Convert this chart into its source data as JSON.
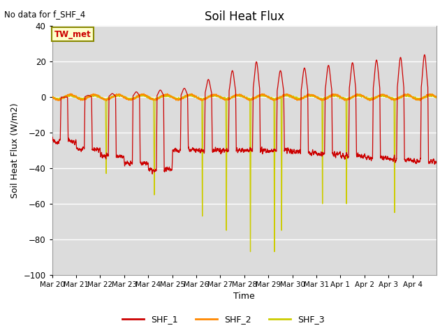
{
  "title": "Soil Heat Flux",
  "xlabel": "Time",
  "ylabel": "Soil Heat Flux (W/m2)",
  "annotation": "No data for f_SHF_4",
  "legend_box_label": "TW_met",
  "ylim": [
    -100,
    40
  ],
  "yticks": [
    -100,
    -80,
    -60,
    -40,
    -20,
    0,
    20,
    40
  ],
  "xtick_labels": [
    "Mar 20",
    "Mar 21",
    "Mar 22",
    "Mar 23",
    "Mar 24",
    "Mar 25",
    "Mar 26",
    "Mar 27",
    "Mar 28",
    "Mar 29",
    "Mar 30",
    "Mar 31",
    "Apr 1",
    "Apr 2",
    "Apr 3",
    "Apr 4"
  ],
  "colors": {
    "SHF_1": "#cc0000",
    "SHF_2": "#ff8800",
    "SHF_3": "#cccc00",
    "legend_bg": "#ffffcc",
    "legend_edge": "#888800",
    "plot_bg": "#dcdcdc"
  },
  "legend_entries": [
    "SHF_1",
    "SHF_2",
    "SHF_3"
  ]
}
